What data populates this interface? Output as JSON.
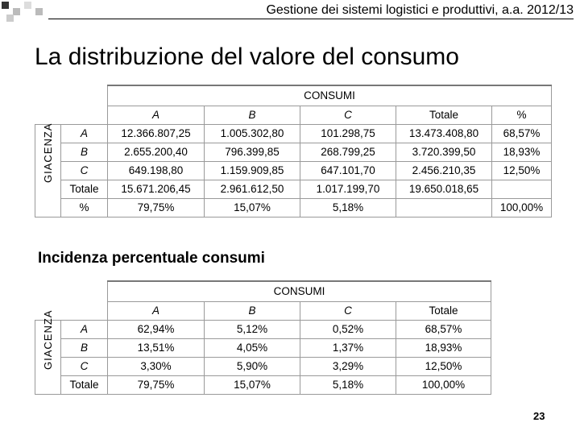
{
  "header": {
    "course": "Gestione dei sistemi logistici e produttivi, a.a. 2012/13"
  },
  "title": "La distribuzione del valore del consumo",
  "table1": {
    "header": "CONSUMI",
    "row_group": "GIACENZA",
    "columns": [
      "A",
      "B",
      "C",
      "Totale",
      "%"
    ],
    "rows": [
      {
        "label": "A",
        "cells": [
          "12.366.807,25",
          "1.005.302,80",
          "101.298,75",
          "13.473.408,80",
          "68,57%"
        ]
      },
      {
        "label": "B",
        "cells": [
          "2.655.200,40",
          "796.399,85",
          "268.799,25",
          "3.720.399,50",
          "18,93%"
        ]
      },
      {
        "label": "C",
        "cells": [
          "649.198,80",
          "1.159.909,85",
          "647.101,70",
          "2.456.210,35",
          "12,50%"
        ]
      },
      {
        "label": "Totale",
        "cells": [
          "15.671.206,45",
          "2.961.612,50",
          "1.017.199,70",
          "19.650.018,65",
          null
        ]
      },
      {
        "label": "%",
        "cells": [
          "79,75%",
          "15,07%",
          "5,18%",
          null,
          "100,00%"
        ]
      }
    ]
  },
  "subtitle": "Incidenza percentuale consumi",
  "table2": {
    "header": "CONSUMI",
    "row_group": "GIACENZA",
    "columns": [
      "A",
      "B",
      "C",
      "Totale"
    ],
    "rows": [
      {
        "label": "A",
        "cells": [
          "62,94%",
          "5,12%",
          "0,52%",
          "68,57%"
        ]
      },
      {
        "label": "B",
        "cells": [
          "13,51%",
          "4,05%",
          "1,37%",
          "18,93%"
        ]
      },
      {
        "label": "C",
        "cells": [
          "3,30%",
          "5,90%",
          "3,29%",
          "12,50%"
        ]
      },
      {
        "label": "Totale",
        "cells": [
          "79,75%",
          "15,07%",
          "5,18%",
          "100,00%"
        ]
      }
    ]
  },
  "page_number": "23"
}
